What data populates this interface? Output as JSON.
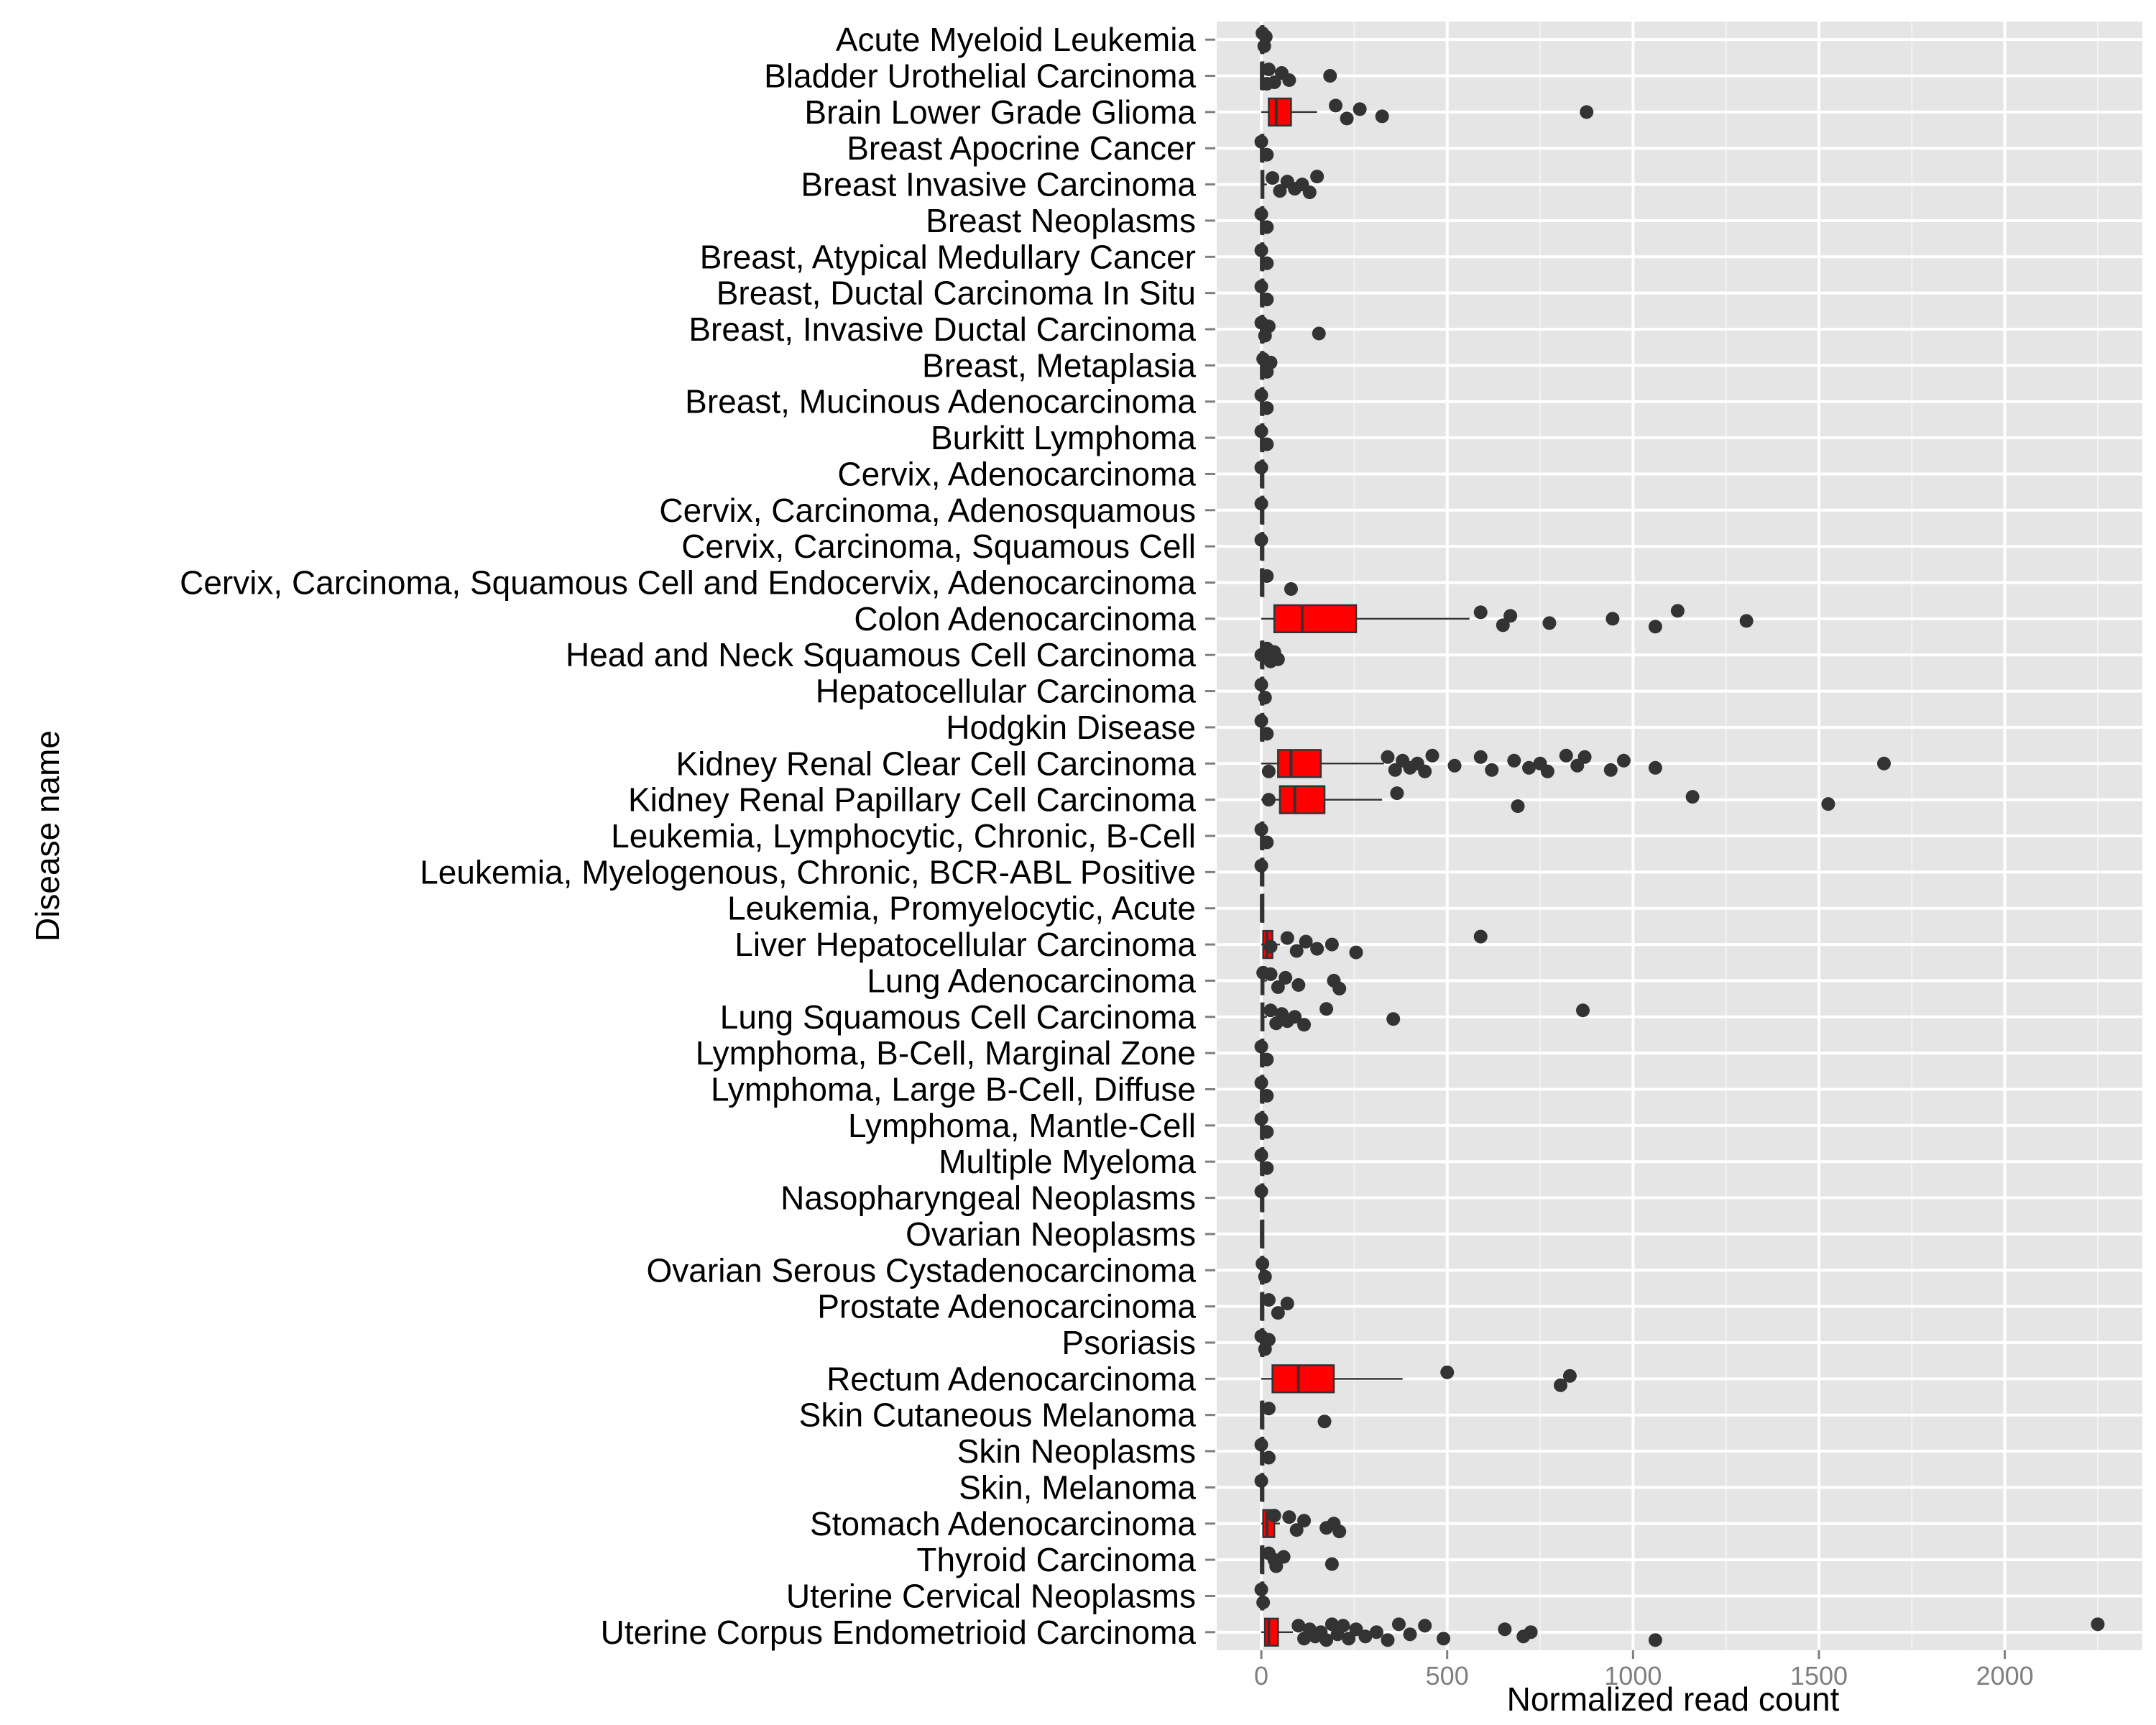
{
  "chart_data": {
    "type": "boxplot",
    "orientation": "horizontal",
    "xlabel": "Normalized read count",
    "ylabel": "Disease name",
    "xlim": [
      -120,
      2370
    ],
    "xticks": [
      0,
      500,
      1000,
      1500,
      2000
    ],
    "grid": true,
    "legend": "none",
    "colors": {
      "panel_background": "#e5e5e5",
      "grid": "#ffffff",
      "box_fill": "#ff0000",
      "box_outline": "#333333",
      "outlier": "#333333",
      "tick_label": "#7f7f7f"
    },
    "categories": [
      {
        "name": "Acute Myeloid Leukemia",
        "whisker_low": 0,
        "q1": 0,
        "median": 0,
        "q3": 0,
        "whisker_high": 0,
        "outliers": [
          3,
          8,
          12
        ]
      },
      {
        "name": "Bladder Urothelial Carcinoma",
        "whisker_low": 0,
        "q1": 0,
        "median": 0,
        "q3": 0,
        "whisker_high": 0,
        "outliers": [
          20,
          35,
          55,
          75,
          185,
          15
        ]
      },
      {
        "name": "Brain Lower Grade Glioma",
        "whisker_low": 0,
        "q1": 20,
        "median": 40,
        "q3": 80,
        "whisker_high": 150,
        "outliers": [
          200,
          230,
          265,
          325,
          875
        ]
      },
      {
        "name": "Breast Apocrine Cancer",
        "whisker_low": 0,
        "q1": 0,
        "median": 0,
        "q3": 0,
        "whisker_high": 0,
        "outliers": [
          0,
          15
        ]
      },
      {
        "name": "Breast Invasive Carcinoma",
        "whisker_low": 0,
        "q1": 0,
        "median": 2,
        "q3": 5,
        "whisker_high": 15,
        "outliers": [
          30,
          50,
          70,
          90,
          110,
          130,
          150
        ]
      },
      {
        "name": "Breast Neoplasms",
        "whisker_low": 0,
        "q1": 0,
        "median": 0,
        "q3": 0,
        "whisker_high": 0,
        "outliers": [
          0,
          15
        ]
      },
      {
        "name": "Breast, Atypical Medullary Cancer",
        "whisker_low": 0,
        "q1": 0,
        "median": 0,
        "q3": 0,
        "whisker_high": 0,
        "outliers": [
          0,
          15
        ]
      },
      {
        "name": "Breast, Ductal Carcinoma In Situ",
        "whisker_low": 0,
        "q1": 0,
        "median": 0,
        "q3": 0,
        "whisker_high": 0,
        "outliers": [
          0,
          15
        ]
      },
      {
        "name": "Breast, Invasive Ductal Carcinoma",
        "whisker_low": 0,
        "q1": 0,
        "median": 0,
        "q3": 0,
        "whisker_high": 0,
        "outliers": [
          0,
          10,
          20,
          155
        ]
      },
      {
        "name": "Breast, Metaplasia",
        "whisker_low": 0,
        "q1": 0,
        "median": 0,
        "q3": 0,
        "whisker_high": 0,
        "outliers": [
          5,
          15,
          25
        ]
      },
      {
        "name": "Breast, Mucinous Adenocarcinoma",
        "whisker_low": 0,
        "q1": 0,
        "median": 0,
        "q3": 0,
        "whisker_high": 0,
        "outliers": [
          0,
          15
        ]
      },
      {
        "name": "Burkitt Lymphoma",
        "whisker_low": 0,
        "q1": 0,
        "median": 0,
        "q3": 0,
        "whisker_high": 0,
        "outliers": [
          0,
          15
        ]
      },
      {
        "name": "Cervix, Adenocarcinoma",
        "whisker_low": 0,
        "q1": 0,
        "median": 0,
        "q3": 0,
        "whisker_high": 0,
        "outliers": [
          0
        ]
      },
      {
        "name": "Cervix, Carcinoma, Adenosquamous",
        "whisker_low": 0,
        "q1": 0,
        "median": 0,
        "q3": 0,
        "whisker_high": 0,
        "outliers": [
          0
        ]
      },
      {
        "name": "Cervix, Carcinoma, Squamous Cell",
        "whisker_low": 0,
        "q1": 0,
        "median": 0,
        "q3": 0,
        "whisker_high": 0,
        "outliers": [
          0
        ]
      },
      {
        "name": "Cervix, Carcinoma, Squamous Cell and Endocervix, Adenocarcinoma",
        "whisker_low": 0,
        "q1": 0,
        "median": 0,
        "q3": 0,
        "whisker_high": 0,
        "outliers": [
          15,
          80
        ]
      },
      {
        "name": "Colon Adenocarcinoma",
        "whisker_low": 0,
        "q1": 35,
        "median": 110,
        "q3": 255,
        "whisker_high": 560,
        "outliers": [
          590,
          650,
          670,
          775,
          945,
          1060,
          1120,
          1305
        ]
      },
      {
        "name": "Head and Neck Squamous Cell Carcinoma",
        "whisker_low": 0,
        "q1": 0,
        "median": 0,
        "q3": 0,
        "whisker_high": 10,
        "outliers": [
          15,
          25,
          35,
          45,
          0
        ]
      },
      {
        "name": "Hepatocellular Carcinoma",
        "whisker_low": 0,
        "q1": 0,
        "median": 0,
        "q3": 0,
        "whisker_high": 0,
        "outliers": [
          0,
          10
        ]
      },
      {
        "name": "Hodgkin Disease",
        "whisker_low": 0,
        "q1": 0,
        "median": 0,
        "q3": 0,
        "whisker_high": 0,
        "outliers": [
          0,
          15
        ]
      },
      {
        "name": "Kidney Renal Clear Cell Carcinoma",
        "whisker_low": 0,
        "q1": 45,
        "median": 80,
        "q3": 160,
        "whisker_high": 330,
        "outliers": [
          340,
          360,
          380,
          400,
          420,
          440,
          460,
          520,
          590,
          620,
          680,
          720,
          750,
          770,
          820,
          850,
          870,
          940,
          975,
          1060,
          1675,
          20
        ]
      },
      {
        "name": "Kidney Renal Papillary Cell Carcinoma",
        "whisker_low": 0,
        "q1": 50,
        "median": 90,
        "q3": 170,
        "whisker_high": 325,
        "outliers": [
          365,
          690,
          1160,
          1525,
          20
        ]
      },
      {
        "name": "Leukemia, Lymphocytic, Chronic, B-Cell",
        "whisker_low": 0,
        "q1": 0,
        "median": 0,
        "q3": 0,
        "whisker_high": 0,
        "outliers": [
          0,
          15
        ]
      },
      {
        "name": "Leukemia, Myelogenous, Chronic, BCR-ABL Positive",
        "whisker_low": 0,
        "q1": 0,
        "median": 0,
        "q3": 0,
        "whisker_high": 0,
        "outliers": [
          0
        ]
      },
      {
        "name": "Leukemia, Promyelocytic, Acute",
        "whisker_low": 0,
        "q1": 0,
        "median": 0,
        "q3": 0,
        "whisker_high": 0,
        "outliers": []
      },
      {
        "name": "Liver Hepatocellular Carcinoma",
        "whisker_low": 0,
        "q1": 5,
        "median": 15,
        "q3": 30,
        "whisker_high": 50,
        "outliers": [
          70,
          95,
          120,
          150,
          190,
          255,
          590,
          25
        ]
      },
      {
        "name": "Lung Adenocarcinoma",
        "whisker_low": 0,
        "q1": 0,
        "median": 2,
        "q3": 6,
        "whisker_high": 15,
        "outliers": [
          25,
          45,
          65,
          100,
          195,
          210,
          5
        ]
      },
      {
        "name": "Lung Squamous Cell Carcinoma",
        "whisker_low": 0,
        "q1": 0,
        "median": 2,
        "q3": 6,
        "whisker_high": 15,
        "outliers": [
          25,
          40,
          55,
          70,
          90,
          115,
          175,
          355,
          865
        ]
      },
      {
        "name": "Lymphoma, B-Cell, Marginal Zone",
        "whisker_low": 0,
        "q1": 0,
        "median": 0,
        "q3": 0,
        "whisker_high": 0,
        "outliers": [
          0,
          15
        ]
      },
      {
        "name": "Lymphoma, Large B-Cell, Diffuse",
        "whisker_low": 0,
        "q1": 0,
        "median": 0,
        "q3": 0,
        "whisker_high": 0,
        "outliers": [
          0,
          15
        ]
      },
      {
        "name": "Lymphoma, Mantle-Cell",
        "whisker_low": 0,
        "q1": 0,
        "median": 0,
        "q3": 0,
        "whisker_high": 0,
        "outliers": [
          0,
          15
        ]
      },
      {
        "name": "Multiple Myeloma",
        "whisker_low": 0,
        "q1": 0,
        "median": 0,
        "q3": 0,
        "whisker_high": 0,
        "outliers": [
          0,
          15
        ]
      },
      {
        "name": "Nasopharyngeal Neoplasms",
        "whisker_low": 0,
        "q1": 0,
        "median": 0,
        "q3": 0,
        "whisker_high": 0,
        "outliers": [
          0
        ]
      },
      {
        "name": "Ovarian Neoplasms",
        "whisker_low": 0,
        "q1": 0,
        "median": 0,
        "q3": 0,
        "whisker_high": 0,
        "outliers": []
      },
      {
        "name": "Ovarian Serous Cystadenocarcinoma",
        "whisker_low": 0,
        "q1": 0,
        "median": 0,
        "q3": 0,
        "whisker_high": 0,
        "outliers": [
          3,
          10
        ]
      },
      {
        "name": "Prostate Adenocarcinoma",
        "whisker_low": 0,
        "q1": 0,
        "median": 0,
        "q3": 0,
        "whisker_high": 5,
        "outliers": [
          20,
          45,
          70
        ]
      },
      {
        "name": "Psoriasis",
        "whisker_low": 0,
        "q1": 0,
        "median": 0,
        "q3": 0,
        "whisker_high": 0,
        "outliers": [
          0,
          10,
          20
        ]
      },
      {
        "name": "Rectum Adenocarcinoma",
        "whisker_low": 0,
        "q1": 30,
        "median": 100,
        "q3": 195,
        "whisker_high": 380,
        "outliers": [
          500,
          805,
          830
        ]
      },
      {
        "name": "Skin Cutaneous Melanoma",
        "whisker_low": 0,
        "q1": 0,
        "median": 0,
        "q3": 0,
        "whisker_high": 0,
        "outliers": [
          20,
          170
        ]
      },
      {
        "name": "Skin Neoplasms",
        "whisker_low": 0,
        "q1": 0,
        "median": 0,
        "q3": 0,
        "whisker_high": 0,
        "outliers": [
          0,
          20
        ]
      },
      {
        "name": "Skin, Melanoma",
        "whisker_low": 0,
        "q1": 0,
        "median": 0,
        "q3": 0,
        "whisker_high": 0,
        "outliers": [
          0
        ]
      },
      {
        "name": "Stomach Adenocarcinoma",
        "whisker_low": 0,
        "q1": 5,
        "median": 15,
        "q3": 35,
        "whisker_high": 50,
        "outliers": [
          75,
          95,
          115,
          175,
          195,
          210,
          35
        ]
      },
      {
        "name": "Thyroid Carcinoma",
        "whisker_low": 0,
        "q1": 0,
        "median": 0,
        "q3": 0,
        "whisker_high": 5,
        "outliers": [
          20,
          40,
          60,
          190,
          35
        ]
      },
      {
        "name": "Uterine Cervical Neoplasms",
        "whisker_low": 0,
        "q1": 0,
        "median": 0,
        "q3": 0,
        "whisker_high": 0,
        "outliers": [
          0,
          5
        ]
      },
      {
        "name": "Uterine Corpus Endometrioid Carcinoma",
        "whisker_low": 0,
        "q1": 10,
        "median": 20,
        "q3": 45,
        "whisker_high": 85,
        "outliers": [
          100,
          115,
          130,
          145,
          160,
          175,
          190,
          205,
          220,
          235,
          255,
          280,
          310,
          340,
          370,
          400,
          440,
          490,
          655,
          705,
          725,
          1060,
          2250
        ]
      }
    ]
  }
}
